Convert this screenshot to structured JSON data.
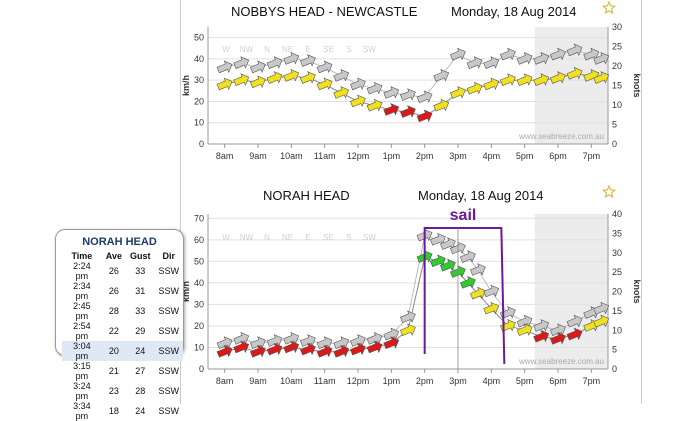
{
  "chart_data": [
    {
      "type": "line",
      "title": "NOBBYS HEAD - NEWCASTLE",
      "date": "Monday, 18 Aug 2014",
      "ylabel": "km/h",
      "y2label": "knots",
      "ylim": [
        0,
        55
      ],
      "yticks": [
        0,
        10,
        20,
        30,
        40,
        50
      ],
      "y2lim": [
        0,
        30
      ],
      "y2ticks": [
        0,
        5,
        10,
        15,
        20,
        25,
        30
      ],
      "xlim": [
        7.5,
        19.5
      ],
      "xticks": [
        "8am",
        "9am",
        "10am",
        "11am",
        "12pm",
        "1pm",
        "2pm",
        "3pm",
        "4pm",
        "5pm",
        "6pm",
        "7pm"
      ],
      "dir_labels": [
        "W",
        "NW",
        "N",
        "NE",
        "E",
        "SE",
        "S",
        "SW"
      ],
      "watermark": "www.seabreeze.com.au",
      "legend": "none",
      "x": [
        8.0,
        8.5,
        9.0,
        9.5,
        10.0,
        10.5,
        11.0,
        11.5,
        12.0,
        12.5,
        13.0,
        13.5,
        14.0,
        14.5,
        15.0,
        15.5,
        16.0,
        16.5,
        17.0,
        17.5,
        18.0,
        18.5,
        19.0,
        19.3
      ],
      "series": [
        {
          "values": [
            28,
            30,
            29,
            31,
            32,
            31,
            28,
            24,
            20,
            18,
            16,
            15,
            13,
            18,
            24,
            26,
            28,
            30,
            30,
            30,
            31,
            33,
            32,
            31
          ]
        },
        {
          "values": [
            36,
            38,
            36,
            38,
            40,
            39,
            36,
            32,
            28,
            26,
            24,
            23,
            22,
            32,
            42,
            38,
            38,
            42,
            40,
            40,
            42,
            44,
            42,
            40
          ]
        }
      ]
    },
    {
      "type": "line",
      "title": "NORAH HEAD",
      "date": "Monday, 18 Aug 2014",
      "ylabel": "km/h",
      "y2label": "knots",
      "ylim": [
        0,
        72
      ],
      "yticks": [
        0,
        10,
        20,
        30,
        40,
        50,
        60,
        70
      ],
      "y2lim": [
        0,
        40
      ],
      "y2ticks": [
        0,
        5,
        10,
        15,
        20,
        25,
        30,
        35,
        40
      ],
      "xlim": [
        7.5,
        19.5
      ],
      "xticks": [
        "8am",
        "9am",
        "10am",
        "11am",
        "12pm",
        "1pm",
        "2pm",
        "3pm",
        "4pm",
        "5pm",
        "6pm",
        "7pm"
      ],
      "dir_labels": [
        "W",
        "NW",
        "N",
        "NE",
        "E",
        "SE",
        "S",
        "SW"
      ],
      "watermark": "www.seabreeze.com.au",
      "legend": "none",
      "annotation": "sail",
      "x": [
        8.0,
        8.5,
        9.0,
        9.5,
        10.0,
        10.5,
        11.0,
        11.5,
        12.0,
        12.5,
        13.0,
        13.5,
        14.0,
        14.4,
        14.7,
        15.0,
        15.3,
        15.6,
        16.0,
        16.5,
        17.0,
        17.5,
        18.0,
        18.5,
        19.0,
        19.3
      ],
      "series": [
        {
          "values": [
            8,
            10,
            8,
            9,
            10,
            9,
            8,
            8,
            9,
            10,
            12,
            18,
            52,
            50,
            48,
            45,
            40,
            35,
            28,
            20,
            18,
            15,
            14,
            16,
            20,
            22
          ]
        },
        {
          "values": [
            12,
            14,
            12,
            13,
            14,
            13,
            12,
            12,
            13,
            14,
            16,
            24,
            62,
            60,
            58,
            56,
            52,
            46,
            36,
            26,
            22,
            20,
            18,
            22,
            26,
            28
          ]
        }
      ]
    }
  ],
  "popup": {
    "title": "NORAH HEAD",
    "headers": [
      "Time",
      "Ave",
      "Gust",
      "Dir"
    ],
    "rows": [
      [
        "2:24 pm",
        "26",
        "33",
        "SSW"
      ],
      [
        "2:34 pm",
        "26",
        "31",
        "SSW"
      ],
      [
        "2:45 pm",
        "28",
        "33",
        "SSW"
      ],
      [
        "2:54 pm",
        "22",
        "29",
        "SSW"
      ],
      [
        "3:04 pm",
        "20",
        "24",
        "SSW"
      ],
      [
        "3:15 pm",
        "21",
        "27",
        "SSW"
      ],
      [
        "3:24 pm",
        "23",
        "28",
        "SSW"
      ],
      [
        "3:34 pm",
        "18",
        "24",
        "SSW"
      ]
    ],
    "highlight_row": 4
  },
  "colors": {
    "strong": "#2ecc2e",
    "medium": "#f0e020",
    "light": "#d81a1a",
    "gust": "#c8c8c8",
    "night": "#ececec",
    "annotation": "#6a1b9a",
    "title": "#111111"
  }
}
